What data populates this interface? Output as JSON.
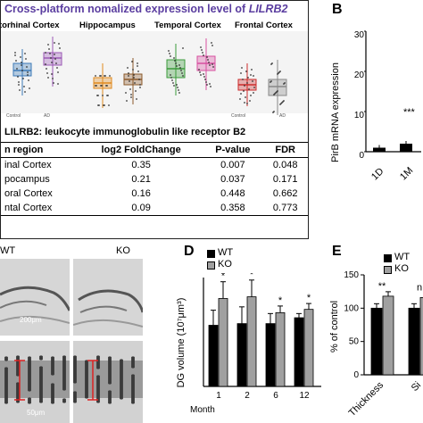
{
  "panel_a": {
    "title_prefix": "Cross-platform nomalized expression level of ",
    "title_gene": "LILRB2",
    "regions": [
      "torhinal Cortex",
      "Hippocampus",
      "Temporal Cortex",
      "Frontal Cortex"
    ],
    "group_labels": [
      "Control",
      "AD"
    ],
    "gene_desc": "LILRB2: leukocyte immunoglobulin like receptor B2",
    "table_headers": [
      "n region",
      "log2 FoldChange",
      "P-value",
      "FDR"
    ],
    "table_rows": [
      [
        "inal Cortex",
        "0.35",
        "0.007",
        "0.048"
      ],
      [
        "pocampus",
        "0.21",
        "0.037",
        "0.171"
      ],
      [
        "oral Cortex",
        "0.16",
        "0.448",
        "0.662"
      ],
      [
        "ntal Cortex",
        "0.09",
        "0.358",
        "0.773"
      ]
    ],
    "colors": {
      "entorhinal": "#3d7ab8",
      "hippocampus": "#e08a1e",
      "temporal": "#3a9a3a",
      "frontal": "#cc2b2b",
      "control_grey": "#888888",
      "ad_purple": "#9b59b6",
      "ad_brown": "#8b5a2b",
      "ad_pink": "#d84fa0",
      "ad_grey": "#888888"
    }
  },
  "panel_b": {
    "letter": "B",
    "ylabel": "PirB mRNA expression",
    "yticks": [
      "0",
      "10",
      "20",
      "30"
    ],
    "xlabels": [
      "1D",
      "1M"
    ],
    "significance": "***"
  },
  "panel_c": {
    "labels": [
      "WT",
      "KO"
    ],
    "scale_top": "200μm",
    "scale_bottom": "50μm"
  },
  "panel_d": {
    "letter": "D",
    "legend": [
      "WT",
      "KO"
    ],
    "ylabel": "DG volume (10⁷μm³)",
    "x_title": "Month",
    "x_ticks": [
      "1",
      "2",
      "6",
      "12"
    ],
    "stars": [
      "*",
      "*",
      "*",
      "*"
    ]
  },
  "panel_e": {
    "letter": "E",
    "legend": [
      "WT",
      "KO"
    ],
    "ylabel": "% of control",
    "yticks": [
      "0",
      "50",
      "100",
      "150"
    ],
    "x_ticks": [
      "Thickness",
      "Si"
    ],
    "stars": [
      "**",
      "n"
    ]
  },
  "chart_data": [
    {
      "type": "bar",
      "id": "B",
      "categories": [
        "1D",
        "1M"
      ],
      "values": [
        1.0,
        2.0
      ],
      "ylim": [
        0,
        30
      ]
    },
    {
      "type": "bar",
      "id": "D",
      "categories": [
        "1",
        "2",
        "6",
        "12"
      ],
      "series": [
        {
          "name": "WT",
          "values": [
            0.73,
            0.75,
            0.75,
            0.82
          ],
          "errors": [
            0.18,
            0.2,
            0.12,
            0.05
          ]
        },
        {
          "name": "KO",
          "values": [
            1.05,
            1.07,
            0.88,
            0.92
          ],
          "errors": [
            0.2,
            0.2,
            0.08,
            0.07
          ]
        }
      ],
      "xlabel": "Month",
      "ylabel": "DG volume (10⁷μm³)"
    },
    {
      "type": "bar",
      "id": "E",
      "categories": [
        "Thickness",
        "Si"
      ],
      "series": [
        {
          "name": "WT",
          "values": [
            100,
            100
          ]
        },
        {
          "name": "KO",
          "values": [
            118,
            116
          ]
        }
      ],
      "ylim": [
        0,
        150
      ],
      "ylabel": "% of control"
    }
  ]
}
